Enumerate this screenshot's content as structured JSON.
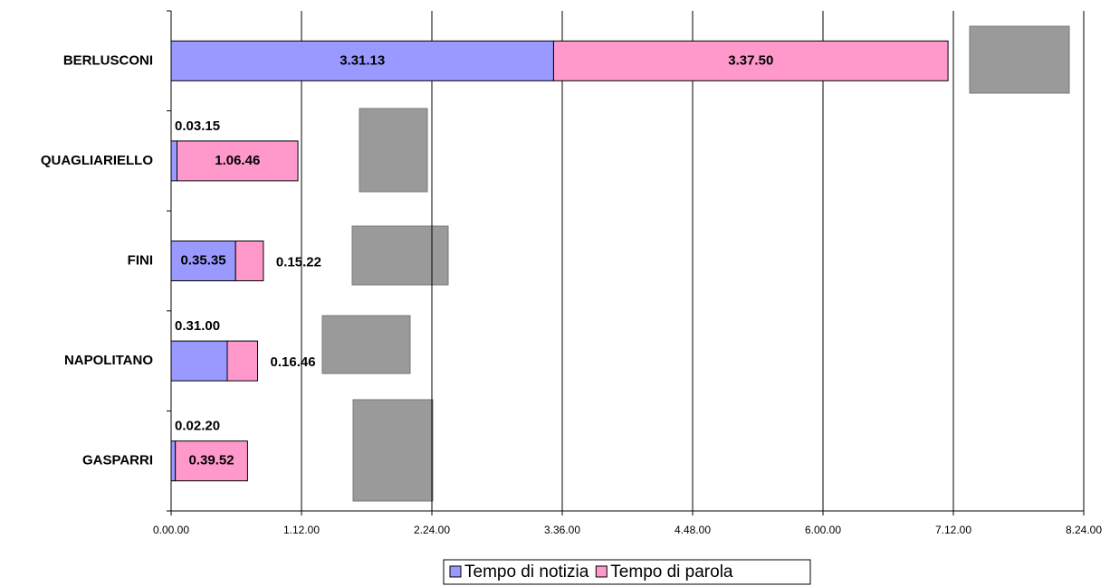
{
  "chart_data": {
    "type": "stacked-barh",
    "categories": [
      "BERLUSCONI",
      "QUAGLIARIELLO",
      "FINI",
      "NAPOLITANO",
      "GASPARRI"
    ],
    "series": [
      {
        "name": "Tempo di notizia",
        "color": "#9999ff",
        "values": [
          3.52028,
          0.05417,
          0.59306,
          0.51667,
          0.03889
        ],
        "value_labels": [
          "3.31.13",
          "0.03.15",
          "0.35.35",
          "0.31.00",
          "0.02.20"
        ]
      },
      {
        "name": "Tempo di parola",
        "color": "#ff99cc",
        "values": [
          3.63056,
          1.11278,
          0.25611,
          0.27944,
          0.66444
        ],
        "value_labels": [
          "3.37.50",
          "1.06.46",
          "0.15.22",
          "0.16.46",
          "0.39.52"
        ]
      }
    ],
    "xlim": [
      0,
      8.4
    ],
    "xticks": [
      {
        "value": 0,
        "label": "0.00.00"
      },
      {
        "value": 1.2,
        "label": "1.12.00"
      },
      {
        "value": 2.4,
        "label": "2.24.00"
      },
      {
        "value": 3.6,
        "label": "3.36.00"
      },
      {
        "value": 4.8,
        "label": "4.48.00"
      },
      {
        "value": 6,
        "label": "6.00.00"
      },
      {
        "value": 7.2,
        "label": "7.12.00"
      },
      {
        "value": 8.4,
        "label": "8.24.00"
      }
    ],
    "grid": true,
    "legend": "bottom"
  }
}
